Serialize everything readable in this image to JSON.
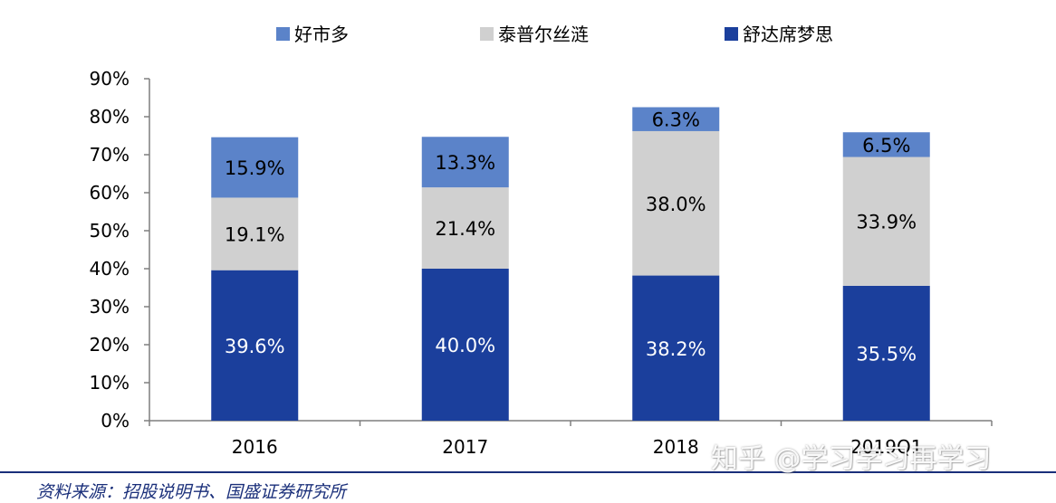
{
  "chart_data": {
    "type": "bar",
    "stacked": true,
    "categories": [
      "2016",
      "2017",
      "2018",
      "2019Q1"
    ],
    "series": [
      {
        "name": "舒达席梦思",
        "values": [
          39.6,
          40.0,
          38.2,
          35.5
        ],
        "labels": [
          "39.6%",
          "40.0%",
          "38.2%",
          "35.5%"
        ],
        "color": "#1b3f9c",
        "label_color": "#ffffff"
      },
      {
        "name": "泰普尔丝涟",
        "values": [
          19.1,
          21.4,
          38.0,
          33.9
        ],
        "labels": [
          "19.1%",
          "21.4%",
          "38.0%",
          "33.9%"
        ],
        "color": "#d0d0d0",
        "label_color": "#000000"
      },
      {
        "name": "好市多",
        "values": [
          15.9,
          13.3,
          6.3,
          6.5
        ],
        "labels": [
          "15.9%",
          "13.3%",
          "6.3%",
          "6.5%"
        ],
        "color": "#5b83c9",
        "label_color": "#000000"
      }
    ],
    "legend_order": [
      "好市多",
      "泰普尔丝涟",
      "舒达席梦思"
    ],
    "legend_placement": "top",
    "ylim": [
      0,
      90
    ],
    "yticks": [
      0,
      10,
      20,
      30,
      40,
      50,
      60,
      70,
      80,
      90
    ],
    "ytick_labels": [
      "0%",
      "10%",
      "20%",
      "30%",
      "40%",
      "50%",
      "60%",
      "70%",
      "80%",
      "90%"
    ],
    "grid": false,
    "title": "",
    "xlabel": "",
    "ylabel": ""
  },
  "source": "资料来源：招股说明书、国盛证券研究所",
  "watermark": "知乎 @学习学习再学习"
}
